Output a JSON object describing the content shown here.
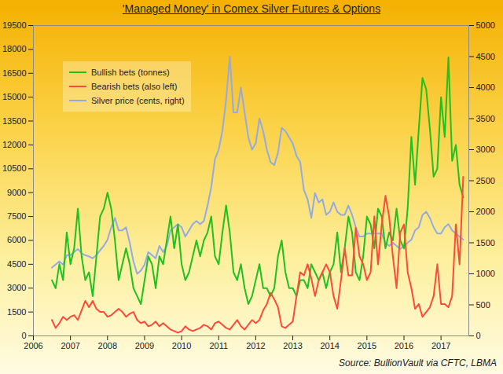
{
  "chart_data": {
    "type": "line",
    "title": "'Managed Money' in Comex Silver Futures & Options",
    "caption": "Source: BullionVault via CFTC, LBMA",
    "legend": "top-left",
    "grid": false,
    "x": [
      2006.5,
      2006.6,
      2006.7,
      2006.8,
      2006.9,
      2007,
      2007.1,
      2007.2,
      2007.3,
      2007.4,
      2007.5,
      2007.6,
      2007.7,
      2007.8,
      2007.9,
      2008,
      2008.1,
      2008.2,
      2008.3,
      2008.4,
      2008.5,
      2008.6,
      2008.7,
      2008.8,
      2008.9,
      2009,
      2009.1,
      2009.2,
      2009.3,
      2009.4,
      2009.5,
      2009.6,
      2009.7,
      2009.8,
      2009.9,
      2010,
      2010.1,
      2010.2,
      2010.3,
      2010.4,
      2010.5,
      2010.6,
      2010.7,
      2010.8,
      2010.9,
      2011,
      2011.1,
      2011.2,
      2011.3,
      2011.4,
      2011.5,
      2011.6,
      2011.7,
      2011.8,
      2011.9,
      2012,
      2012.1,
      2012.2,
      2012.3,
      2012.4,
      2012.5,
      2012.6,
      2012.7,
      2012.8,
      2012.9,
      2013,
      2013.1,
      2013.2,
      2013.3,
      2013.4,
      2013.5,
      2013.6,
      2013.7,
      2013.8,
      2013.9,
      2014,
      2014.1,
      2014.2,
      2014.3,
      2014.4,
      2014.5,
      2014.6,
      2014.7,
      2014.8,
      2014.9,
      2015,
      2015.1,
      2015.2,
      2015.3,
      2015.4,
      2015.5,
      2015.6,
      2015.7,
      2015.8,
      2015.9,
      2016,
      2016.1,
      2016.2,
      2016.3,
      2016.4,
      2016.5,
      2016.6,
      2016.7,
      2016.8,
      2016.9,
      2017,
      2017.1,
      2017.2,
      2017.3,
      2017.4,
      2017.5,
      2017.6
    ],
    "xlim": [
      2006,
      2017.75
    ],
    "xticks": [
      2006,
      2007,
      2008,
      2009,
      2010,
      2011,
      2012,
      2013,
      2014,
      2015,
      2016,
      2017
    ],
    "ylim": [
      0,
      19500
    ],
    "yticks": [
      0,
      1500,
      3000,
      4500,
      6000,
      7500,
      9000,
      10500,
      12000,
      13500,
      15000,
      16500,
      18000,
      19500
    ],
    "y2lim": [
      0,
      5000
    ],
    "y2ticks": [
      0,
      500,
      1000,
      1500,
      2000,
      2500,
      3000,
      3500,
      4000,
      4500,
      5000
    ],
    "series": [
      {
        "name": "Bullish bets (tonnes)",
        "color": "#1fc01f",
        "values": [
          3500,
          3000,
          4500,
          3500,
          6500,
          4500,
          5500,
          8000,
          5000,
          3500,
          4000,
          2500,
          5000,
          7500,
          8000,
          9000,
          8000,
          6000,
          3500,
          4500,
          5500,
          4500,
          3000,
          2500,
          2000,
          3500,
          5000,
          4500,
          3000,
          5000,
          4500,
          6000,
          7500,
          5500,
          7000,
          4500,
          3500,
          4000,
          5000,
          6000,
          5000,
          6000,
          6500,
          7500,
          5000,
          4500,
          6500,
          8200,
          6500,
          4000,
          3500,
          4500,
          3000,
          2000,
          2500,
          3500,
          4500,
          3000,
          3000,
          2500,
          3000,
          5000,
          6000,
          4000,
          3000,
          3000,
          2500,
          3500,
          3500,
          3000,
          4500,
          4000,
          3500,
          4000,
          3000,
          4000,
          4500,
          6500,
          4000,
          5500,
          7500,
          6500,
          4000,
          3500,
          5000,
          7500,
          7000,
          5500,
          8000,
          7500,
          5500,
          6500,
          6000,
          8000,
          6000,
          5500,
          8000,
          12500,
          9500,
          13000,
          16200,
          15500,
          13000,
          10000,
          10500,
          15000,
          12500,
          17500,
          11000,
          12000,
          9500,
          8700
        ]
      },
      {
        "name": "Bearish bets (also left)",
        "color": "#ff4a3a",
        "values": [
          1000,
          500,
          800,
          1200,
          1000,
          1200,
          1300,
          1000,
          1600,
          2200,
          1800,
          2200,
          1700,
          1500,
          1500,
          1200,
          1300,
          1500,
          1700,
          1500,
          1200,
          1400,
          1500,
          1000,
          800,
          900,
          600,
          700,
          900,
          600,
          800,
          600,
          400,
          300,
          200,
          300,
          600,
          400,
          300,
          400,
          500,
          700,
          600,
          400,
          800,
          900,
          700,
          500,
          400,
          700,
          1000,
          600,
          400,
          700,
          1000,
          800,
          1000,
          1600,
          2000,
          2700,
          2300,
          1800,
          600,
          500,
          700,
          900,
          2500,
          4000,
          3800,
          4500,
          3600,
          2500,
          3500,
          4000,
          4500,
          4000,
          2500,
          1700,
          3500,
          5500,
          3800,
          3800,
          6800,
          5000,
          4500,
          3500,
          4000,
          7500,
          4500,
          7000,
          8800,
          7500,
          5000,
          3000,
          6500,
          7000,
          4000,
          3000,
          1700,
          2000,
          1200,
          1500,
          1800,
          2500,
          4500,
          2000,
          2000,
          1800,
          2500,
          7000,
          4500,
          10000
        ]
      },
      {
        "name": "Silver price (cents, right)",
        "color": "#93aae6",
        "axis": "y2",
        "values": [
          1100,
          1150,
          1200,
          1150,
          1300,
          1300,
          1350,
          1400,
          1330,
          1300,
          1280,
          1250,
          1300,
          1380,
          1450,
          1550,
          1750,
          1900,
          1700,
          1700,
          1750,
          1500,
          1200,
          1000,
          1050,
          1150,
          1350,
          1300,
          1250,
          1450,
          1350,
          1450,
          1700,
          1750,
          1800,
          1750,
          1600,
          1700,
          1800,
          1850,
          1800,
          1850,
          2100,
          2400,
          2850,
          3000,
          3300,
          3800,
          4500,
          3600,
          3600,
          4000,
          3600,
          3200,
          3000,
          3100,
          3500,
          3300,
          3000,
          2800,
          2750,
          2950,
          3350,
          3300,
          3200,
          3100,
          2900,
          2800,
          2350,
          2200,
          1900,
          2300,
          2150,
          2200,
          1950,
          2000,
          2150,
          2000,
          1950,
          1950,
          2100,
          1950,
          1750,
          1600,
          1600,
          1650,
          1650,
          1650,
          1650,
          1650,
          1500,
          1450,
          1500,
          1450,
          1400,
          1450,
          1500,
          1550,
          1700,
          1750,
          1950,
          2000,
          1900,
          1750,
          1650,
          1650,
          1750,
          1800,
          1700,
          1650,
          1600,
          1550
        ]
      }
    ]
  }
}
